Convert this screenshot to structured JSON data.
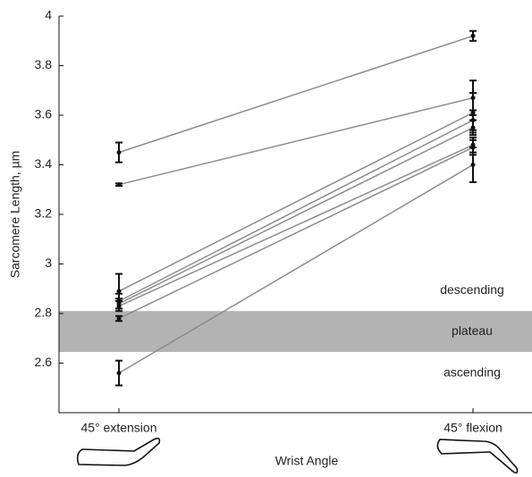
{
  "chart_data": {
    "type": "paired-line",
    "xlabel": "Wrist Angle",
    "ylabel": "Sarcomere Length, µm",
    "categories": [
      "45° extension",
      "45° flexion"
    ],
    "ylim": [
      2.4,
      4
    ],
    "yticks": [
      2.6,
      2.8,
      3,
      3.2,
      3.4,
      3.6,
      3.8,
      4
    ],
    "line_color": "#8c8c8c",
    "marker_color": "#111111",
    "series": [
      {
        "values": [
          3.45,
          3.92
        ],
        "errors": [
          0.04,
          0.02
        ]
      },
      {
        "values": [
          3.32,
          3.67
        ],
        "errors": [
          0.005,
          0.07
        ]
      },
      {
        "values": [
          2.89,
          3.61
        ],
        "errors": [
          0.07,
          0.08
        ]
      },
      {
        "values": [
          2.85,
          3.58
        ],
        "errors": [
          0.03,
          0.04
        ]
      },
      {
        "values": [
          2.84,
          3.55
        ],
        "errors": [
          0.02,
          0.03
        ]
      },
      {
        "values": [
          2.83,
          3.48
        ],
        "errors": [
          0.02,
          0.03
        ]
      },
      {
        "values": [
          2.78,
          3.47
        ],
        "errors": [
          0.01,
          0.03
        ]
      },
      {
        "values": [
          2.56,
          3.4
        ],
        "errors": [
          0.05,
          0.07
        ]
      }
    ],
    "regions": [
      {
        "label": "descending"
      },
      {
        "label": "plateau",
        "range": [
          2.645,
          2.81
        ],
        "color": "#b3b3b3"
      },
      {
        "label": "ascending"
      }
    ]
  }
}
